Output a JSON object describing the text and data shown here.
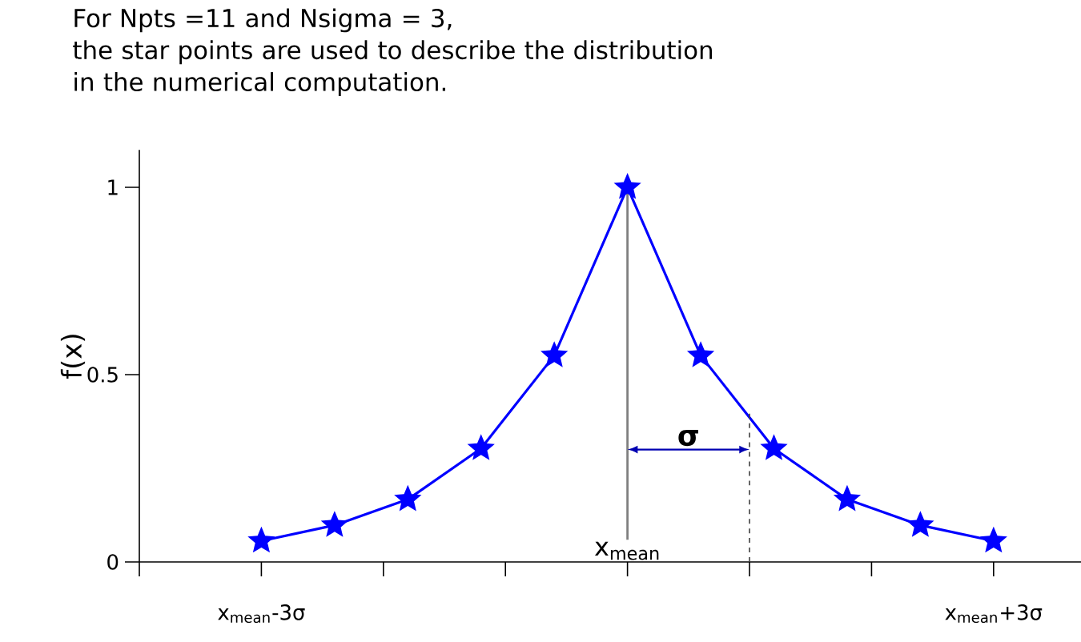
{
  "chart_data": {
    "type": "line",
    "title": "For Npts =11 and Nsigma = 3,",
    "subtitle": "the star points are used to describe the distribution in the numerical computation.",
    "ylabel": "f(x)",
    "x": [
      -3,
      -2.4,
      -1.8,
      -1.2,
      -0.6,
      0,
      0.6,
      1.2,
      1.8,
      2.4,
      3
    ],
    "series": [
      {
        "color": "#0000ff",
        "values": [
          0.056,
          0.098,
          0.167,
          0.303,
          0.551,
          1,
          0.551,
          0.303,
          0.167,
          0.098,
          0.056
        ]
      }
    ],
    "xlim": [
      -4,
      3.75
    ],
    "xticks": [
      {
        "value": -4,
        "label": null
      },
      {
        "value": -3,
        "label": "x$_{mean}$-3σ"
      },
      {
        "value": -2,
        "label": null
      },
      {
        "value": -1,
        "label": null
      },
      {
        "value": 0,
        "label": null
      },
      {
        "value": 1,
        "label": null
      },
      {
        "value": 2,
        "label": null
      },
      {
        "value": 3,
        "label": "x$_{mean}$+3σ"
      }
    ],
    "ylim": [
      0,
      1.1
    ],
    "yticks": [
      0,
      0.5,
      1
    ],
    "ref_lines": [
      {
        "axis": "x",
        "value": 0,
        "label": "x$_{mean}$",
        "color": "#808080"
      },
      {
        "axis": "x",
        "value": 1,
        "line_style": "dashed",
        "color": "#404040"
      }
    ],
    "annotations": [
      "σ"
    ],
    "marker": "star",
    "line_style": "solid"
  }
}
